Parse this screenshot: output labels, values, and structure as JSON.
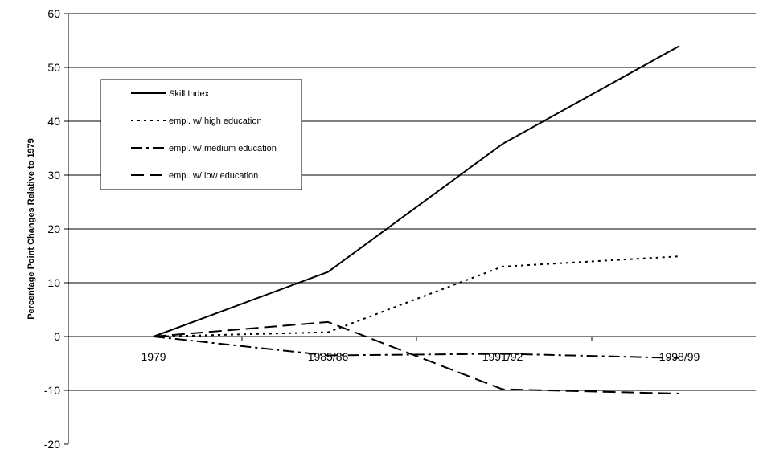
{
  "chart_data": {
    "type": "line",
    "ylabel": "Percentage Point Changes Relative to 1979",
    "ylim": [
      -20,
      60
    ],
    "yticks": [
      -20,
      -10,
      0,
      10,
      20,
      30,
      40,
      50,
      60
    ],
    "grid": true,
    "legend_position": "top-left",
    "categories": [
      "1979",
      "1985/86",
      "1991/92",
      "1998/99"
    ],
    "series": [
      {
        "name": "Skill Index",
        "values": [
          0,
          12,
          35.8,
          54
        ],
        "style": "solid",
        "color": "#000000"
      },
      {
        "name": "empl. w/ high education",
        "values": [
          0,
          0.8,
          13,
          14.9
        ],
        "style": "dotted",
        "color": "#000000"
      },
      {
        "name": "empl. w/ medium education",
        "values": [
          0,
          -3.5,
          -3.2,
          -4
        ],
        "style": "dash-dot",
        "color": "#000000"
      },
      {
        "name": "empl. w/ low education",
        "values": [
          0,
          2.7,
          -9.8,
          -10.6
        ],
        "style": "dashed",
        "color": "#000000"
      }
    ]
  }
}
